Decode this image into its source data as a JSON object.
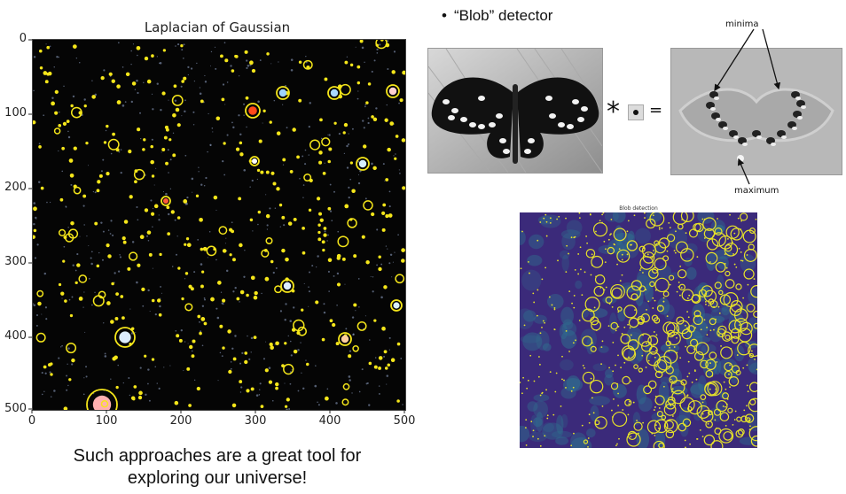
{
  "log_figure": {
    "title": "Laplacian of Gaussian",
    "y_ticks": [
      "0",
      "100",
      "200",
      "300",
      "400",
      "500"
    ],
    "x_ticks": [
      "0",
      "100",
      "200",
      "300",
      "400",
      "500"
    ]
  },
  "caption": {
    "line1": "Such approaches are a great tool for",
    "line2": "exploring our universe!"
  },
  "blob_detector": {
    "bullet": "•",
    "heading": "“Blob” detector",
    "conv_symbol": "*",
    "equals_symbol": "=",
    "minima_label": "minima",
    "maximum_label": "maximum"
  },
  "blob_detection_plot": {
    "title": "Blob detection"
  },
  "colors": {
    "star_circle": "#f5e61a",
    "blob_circle": "#e6e22a",
    "blob_background": "#3b2a7a"
  }
}
